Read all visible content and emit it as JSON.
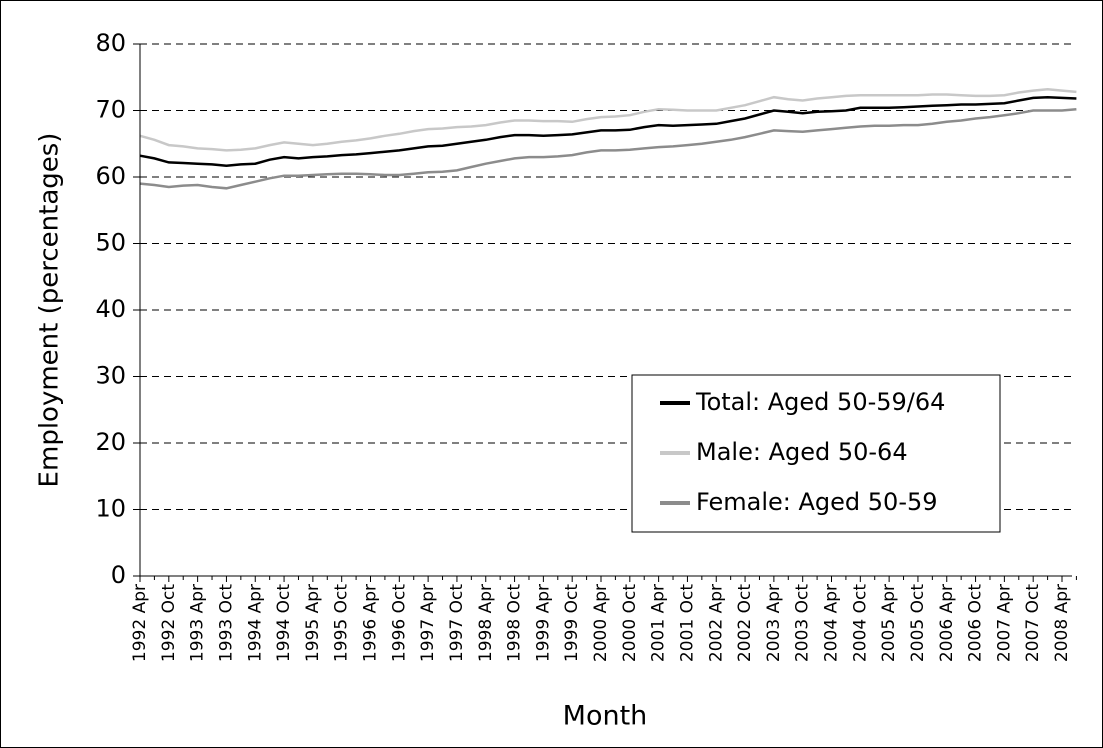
{
  "chart_data": {
    "type": "line",
    "x_label": "Month",
    "y_label": "Employment (percentages)",
    "categories": [
      "1992 Apr",
      null,
      "1992 Oct",
      null,
      "1993 Apr",
      null,
      "1993 Oct",
      null,
      "1994 Apr",
      null,
      "1994 Oct",
      null,
      "1995 Apr",
      null,
      "1995 Oct",
      null,
      "1996 Apr",
      null,
      "1996 Oct",
      null,
      "1997 Apr",
      null,
      "1997 Oct",
      null,
      "1998 Apr",
      null,
      "1998 Oct",
      null,
      "1999 Apr",
      null,
      "1999 Oct",
      null,
      "2000 Apr",
      null,
      "2000 Oct",
      null,
      "2001 Apr",
      null,
      "2001 Oct",
      null,
      "2002 Apr",
      null,
      "2002 Oct",
      null,
      "2003 Apr",
      null,
      "2003 Oct",
      null,
      "2004 Apr",
      null,
      "2004 Oct",
      null,
      "2005 Apr",
      null,
      "2005 Oct",
      null,
      "2006 Apr",
      null,
      "2006 Oct",
      null,
      "2007 Apr",
      null,
      "2007 Oct",
      null,
      "2008 Apr",
      null
    ],
    "series": [
      {
        "name": "Total: Aged 50-59/64",
        "color": "#000000",
        "values": [
          63.2,
          62.8,
          62.2,
          62.1,
          62.0,
          61.9,
          61.7,
          61.9,
          62.0,
          62.6,
          63.0,
          62.8,
          63.0,
          63.1,
          63.3,
          63.4,
          63.6,
          63.8,
          64.0,
          64.3,
          64.6,
          64.7,
          65.0,
          65.3,
          65.6,
          66.0,
          66.3,
          66.3,
          66.2,
          66.3,
          66.4,
          66.7,
          67.0,
          67.0,
          67.1,
          67.5,
          67.8,
          67.7,
          67.8,
          67.9,
          68.0,
          68.4,
          68.8,
          69.4,
          70.0,
          69.8,
          69.6,
          69.8,
          69.9,
          70.0,
          70.4,
          70.4,
          70.4,
          70.5,
          70.6,
          70.7,
          70.8,
          70.9,
          70.9,
          71.0,
          71.1,
          71.5,
          71.9,
          72.0,
          71.9,
          71.8
        ]
      },
      {
        "name": "Male: Aged 50-64",
        "color": "#c8c8c8",
        "values": [
          66.2,
          65.6,
          64.8,
          64.6,
          64.3,
          64.2,
          64.0,
          64.1,
          64.3,
          64.8,
          65.2,
          65.0,
          64.8,
          65.0,
          65.3,
          65.5,
          65.8,
          66.2,
          66.5,
          66.9,
          67.2,
          67.3,
          67.5,
          67.6,
          67.8,
          68.2,
          68.5,
          68.5,
          68.4,
          68.4,
          68.3,
          68.7,
          69.0,
          69.1,
          69.3,
          69.8,
          70.2,
          70.1,
          70.0,
          70.0,
          70.0,
          70.4,
          70.8,
          71.4,
          72.0,
          71.7,
          71.5,
          71.8,
          72.0,
          72.2,
          72.3,
          72.3,
          72.3,
          72.3,
          72.3,
          72.4,
          72.4,
          72.3,
          72.2,
          72.2,
          72.3,
          72.7,
          73.0,
          73.2,
          73.0,
          72.8
        ]
      },
      {
        "name": "Female: Aged 50-59",
        "color": "#8c8c8c",
        "values": [
          59.0,
          58.8,
          58.5,
          58.7,
          58.8,
          58.5,
          58.3,
          58.8,
          59.3,
          59.8,
          60.2,
          60.2,
          60.3,
          60.4,
          60.5,
          60.5,
          60.4,
          60.3,
          60.3,
          60.5,
          60.7,
          60.8,
          61.0,
          61.5,
          62.0,
          62.4,
          62.8,
          63.0,
          63.0,
          63.1,
          63.3,
          63.7,
          64.0,
          64.0,
          64.1,
          64.3,
          64.5,
          64.6,
          64.8,
          65.0,
          65.3,
          65.6,
          66.0,
          66.5,
          67.0,
          66.9,
          66.8,
          67.0,
          67.2,
          67.4,
          67.6,
          67.7,
          67.7,
          67.8,
          67.8,
          68.0,
          68.3,
          68.5,
          68.8,
          69.0,
          69.3,
          69.6,
          70.0,
          70.0,
          70.0,
          70.2
        ]
      }
    ],
    "ylim": [
      0,
      80
    ],
    "yticks": [
      0,
      10,
      20,
      30,
      40,
      50,
      60,
      70,
      80
    ],
    "grid": true,
    "legend": "lower right"
  }
}
